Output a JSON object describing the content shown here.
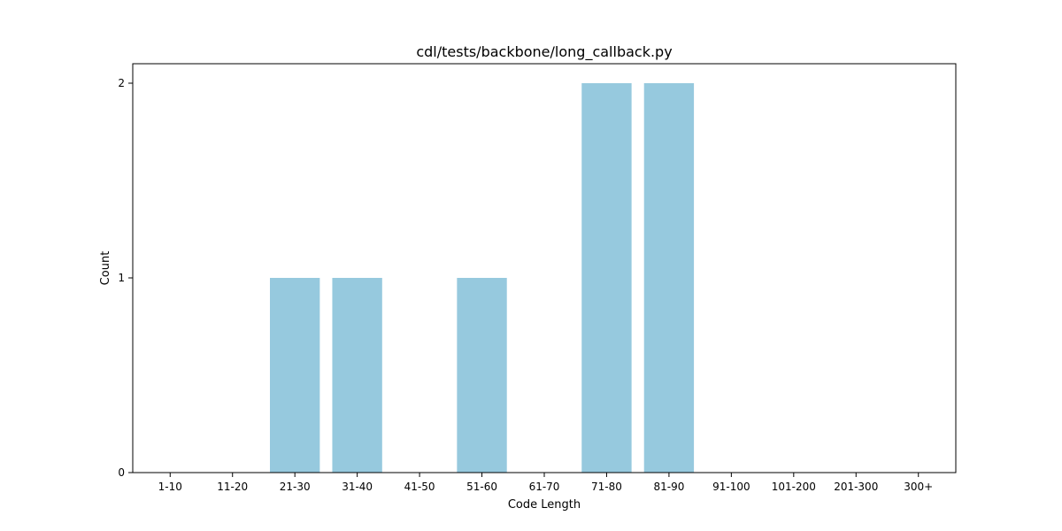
{
  "chart_data": {
    "type": "bar",
    "title": "cdl/tests/backbone/long_callback.py",
    "xlabel": "Code Length",
    "ylabel": "Count",
    "categories": [
      "1-10",
      "11-20",
      "21-30",
      "31-40",
      "41-50",
      "51-60",
      "61-70",
      "71-80",
      "81-90",
      "91-100",
      "101-200",
      "201-300",
      "300+"
    ],
    "values": [
      0,
      0,
      1,
      1,
      0,
      1,
      0,
      2,
      2,
      0,
      0,
      0,
      0
    ],
    "yticks": [
      "0",
      "1",
      "2"
    ],
    "ylim": [
      0,
      2.1
    ],
    "grid": false,
    "bar_color": "#96c9de"
  }
}
